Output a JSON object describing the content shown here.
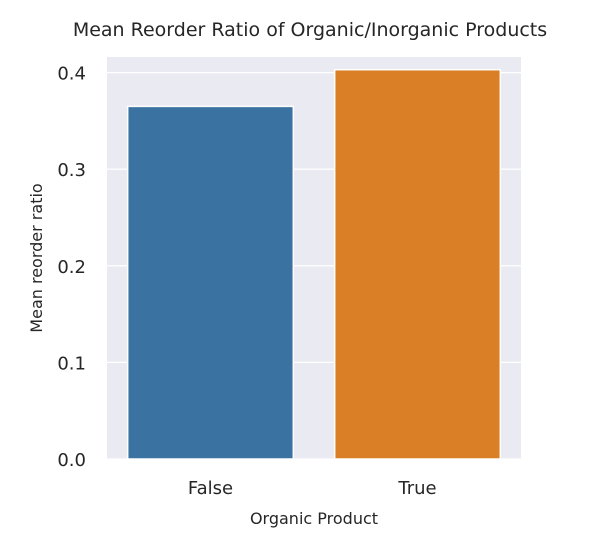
{
  "chart_data": {
    "type": "bar",
    "title": "Mean Reorder Ratio of Organic/Inorganic Products",
    "xlabel": "Organic Product",
    "ylabel": "Mean reorder ratio",
    "categories": [
      "False",
      "True"
    ],
    "values": [
      0.365,
      0.403
    ],
    "ylim": [
      0,
      0.41
    ],
    "yticks": [
      0.0,
      0.1,
      0.2,
      0.3,
      0.4
    ],
    "ytick_labels": [
      "0.0",
      "0.1",
      "0.2",
      "0.3",
      "0.4"
    ],
    "colors": [
      "#3a73a2",
      "#da7f25"
    ],
    "background": "#eaeaf2",
    "grid": true,
    "legend": "none"
  }
}
